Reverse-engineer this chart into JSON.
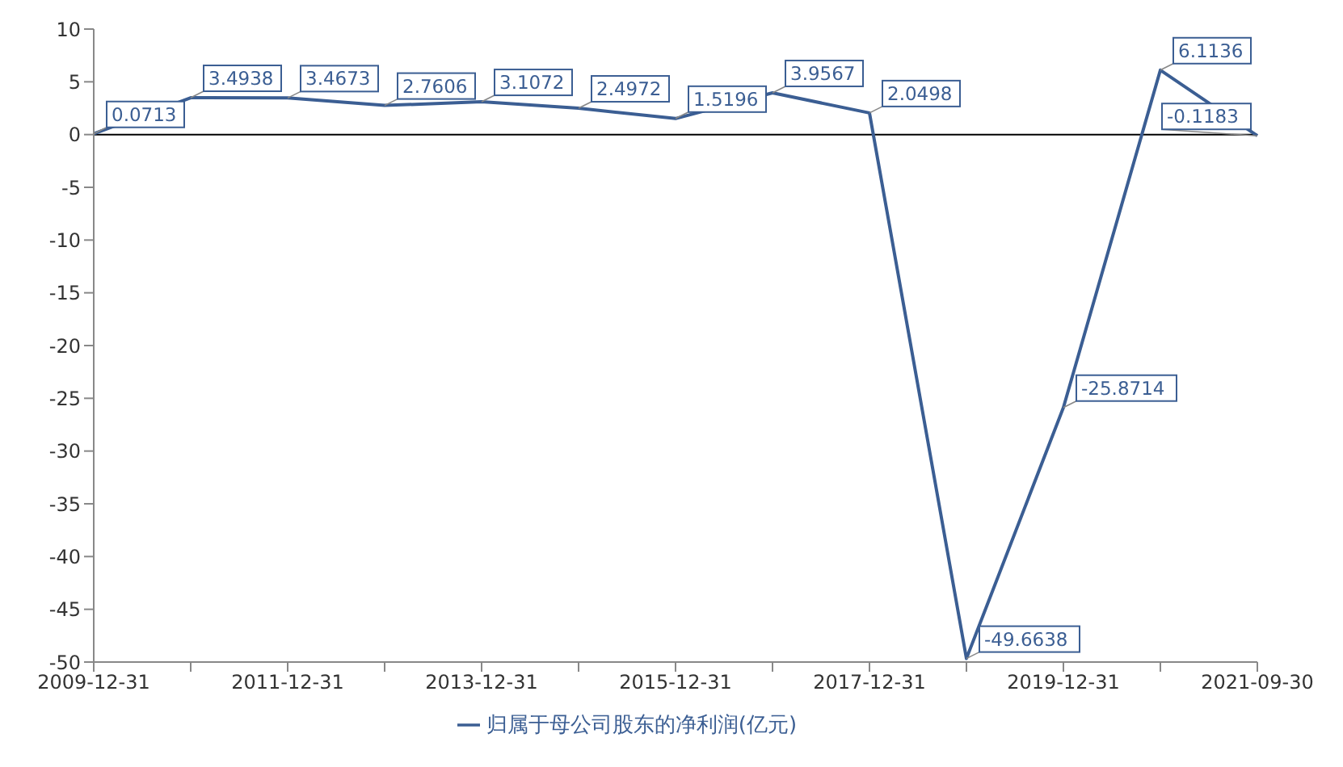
{
  "chart_data": {
    "type": "line",
    "categories": [
      "2009-12-31",
      null,
      "2011-12-31",
      null,
      "2013-12-31",
      null,
      "2015-12-31",
      null,
      "2017-12-31",
      null,
      "2019-12-31",
      null,
      "2021-09-30"
    ],
    "series": [
      {
        "name": "归属于母公司股东的净利润(亿元)",
        "color": "#3b5e93",
        "values": [
          0.0713,
          3.4938,
          3.4673,
          2.7606,
          3.1072,
          2.4972,
          1.5196,
          3.9567,
          2.0498,
          -49.6638,
          -25.8714,
          6.1136,
          -0.1183
        ]
      }
    ],
    "ylim": [
      -50,
      10
    ],
    "yticks": [
      -50,
      -45,
      -40,
      -35,
      -30,
      -25,
      -20,
      -15,
      -10,
      -5,
      0,
      5,
      10
    ],
    "ref_lines": [
      {
        "axis": "y",
        "value": 0,
        "color": "#000000"
      }
    ],
    "data_labels": true,
    "grid": false,
    "legend": "bottom",
    "marker": "none",
    "line_style": "solid"
  }
}
